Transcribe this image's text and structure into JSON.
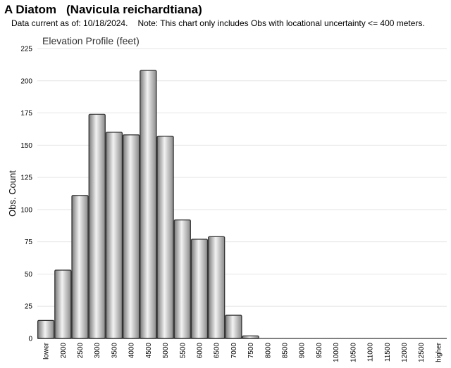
{
  "header": {
    "species_common": "A Diatom",
    "species_latin": "(Navicula reichardtiana)",
    "data_current": "Data current as of: 10/18/2024.",
    "note": "Note: This chart only includes Obs with locational uncertainty <= 400 meters."
  },
  "chart_data": {
    "type": "bar",
    "title": "Elevation Profile (feet)",
    "xlabel": "",
    "ylabel": "Obs. Count",
    "categories": [
      "lower",
      "2000",
      "2500",
      "3000",
      "3500",
      "4000",
      "4500",
      "5000",
      "5500",
      "6000",
      "6500",
      "7000",
      "7500",
      "8000",
      "8500",
      "9000",
      "9500",
      "10000",
      "10500",
      "11000",
      "11500",
      "12000",
      "12500",
      "higher"
    ],
    "values": [
      14,
      53,
      111,
      174,
      160,
      158,
      208,
      157,
      92,
      77,
      79,
      18,
      2,
      0,
      0,
      0,
      0,
      0,
      0,
      0,
      0,
      0,
      0,
      0
    ],
    "yticks": [
      0,
      25,
      50,
      75,
      100,
      125,
      150,
      175,
      200,
      225
    ],
    "ylim": [
      0,
      225
    ],
    "grid": true,
    "legend": "none",
    "bar_color": "#b0b0b0"
  }
}
